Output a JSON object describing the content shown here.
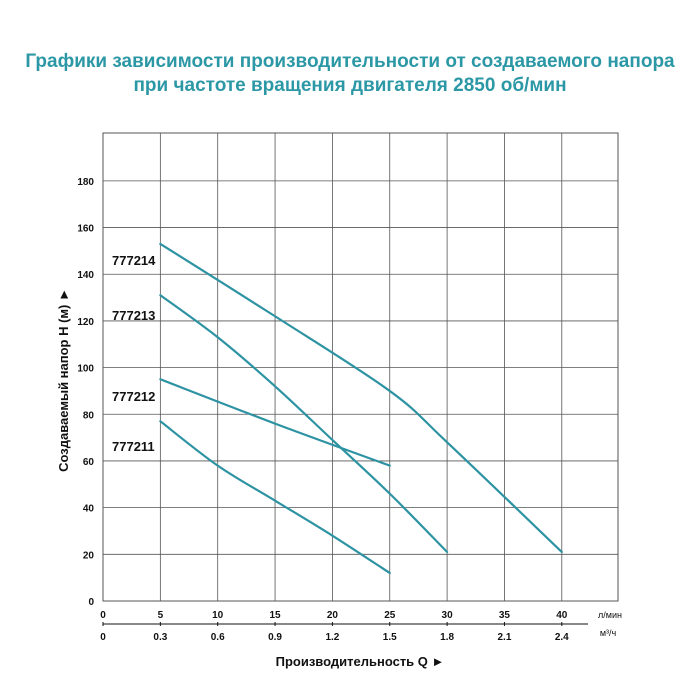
{
  "title_line1": "Графики зависимости производительности от создаваемого напора",
  "title_line2": "при частоте вращения двигателя 2850 об/мин",
  "colors": {
    "title": "#2c98a6",
    "curve": "#2d93a3",
    "grid": "#555555"
  },
  "chart_data": {
    "type": "line",
    "xlabel": "Производительность Q",
    "ylabel": "Создаваемый напор H (м)",
    "x_unit_primary": "л/мин",
    "x_unit_secondary": "м³/ч",
    "x_ticks_primary": [
      "0",
      "5",
      "10",
      "15",
      "20",
      "25",
      "30",
      "35",
      "40"
    ],
    "x_ticks_secondary": [
      "0",
      "0.3",
      "0.6",
      "0.9",
      "1.2",
      "1.5",
      "1.8",
      "2.1",
      "2.4"
    ],
    "y_ticks": [
      "0",
      "20",
      "40",
      "60",
      "80",
      "100",
      "120",
      "140",
      "160",
      "180"
    ],
    "xlim": [
      0,
      45
    ],
    "ylim": [
      0,
      200
    ],
    "grid": true,
    "series": [
      {
        "name": "777214",
        "x": [
          5,
          15,
          25,
          30,
          40
        ],
        "y": [
          153,
          122,
          90,
          68,
          21
        ]
      },
      {
        "name": "777213",
        "x": [
          5,
          10,
          15,
          20,
          25,
          30
        ],
        "y": [
          131,
          113,
          92,
          69,
          46,
          21
        ]
      },
      {
        "name": "777212",
        "x": [
          5,
          15,
          25
        ],
        "y": [
          95,
          76,
          58
        ]
      },
      {
        "name": "777211",
        "x": [
          5,
          10,
          15,
          20,
          25
        ],
        "y": [
          77,
          58,
          43,
          28,
          12
        ]
      }
    ]
  }
}
